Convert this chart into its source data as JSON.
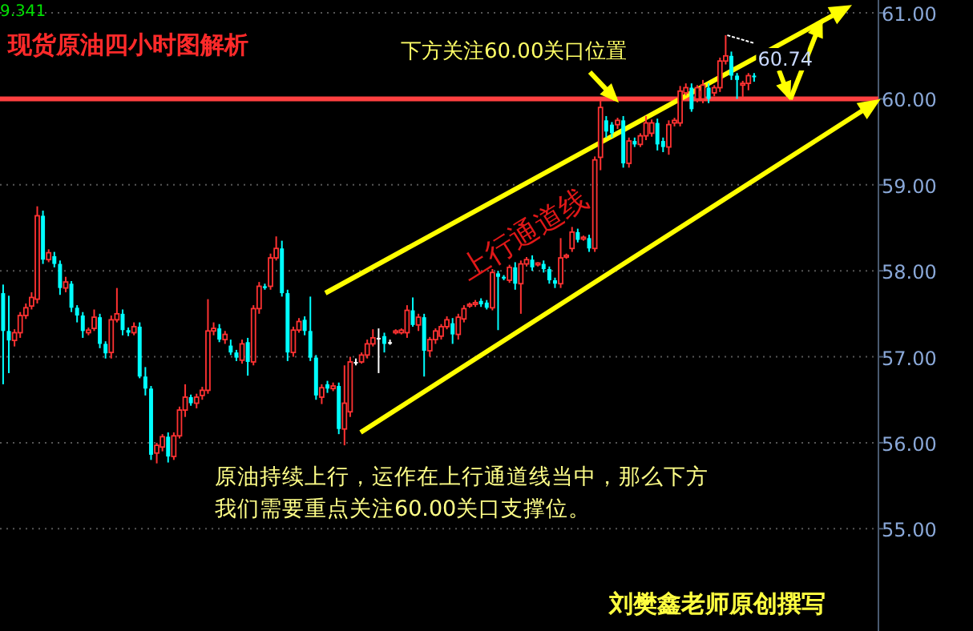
{
  "chart_data": {
    "type": "candlestick",
    "title": "现货原油四小时图解析",
    "categories": [
      null,
      null,
      null,
      null,
      null,
      null,
      null,
      null,
      null,
      null,
      null,
      null,
      null,
      null,
      null,
      null,
      null,
      null,
      null,
      null,
      null,
      null,
      null,
      null,
      null,
      null,
      null,
      null,
      null,
      null,
      null,
      null,
      null,
      null,
      null,
      null,
      null,
      null,
      null,
      null,
      null,
      null,
      null,
      null,
      null,
      null,
      null,
      null,
      null,
      null,
      null,
      null,
      null,
      null,
      null,
      null,
      null,
      null,
      null,
      null,
      null,
      null,
      null,
      null,
      null,
      null,
      null,
      null,
      null,
      null,
      null,
      null,
      null,
      null,
      null,
      null,
      null,
      null,
      null,
      null,
      null,
      null,
      null,
      null,
      null,
      null,
      null,
      null,
      null,
      null,
      null,
      null,
      null,
      null,
      null,
      null,
      null,
      null,
      null,
      null,
      null,
      null,
      null,
      null,
      null,
      null,
      null,
      null,
      null,
      null,
      null,
      null,
      null,
      null,
      null,
      null,
      null,
      null,
      null,
      null,
      null,
      null,
      null,
      null,
      null,
      null,
      null,
      null,
      null,
      null,
      null,
      null,
      null,
      null,
      null,
      null,
      null,
      null,
      null,
      null,
      null,
      null,
      null,
      null,
      null,
      null,
      null,
      null,
      null,
      null,
      null,
      null,
      null,
      null
    ],
    "ohlc": [
      [
        57.74,
        57.84,
        56.68,
        57.3
      ],
      [
        57.3,
        57.71,
        56.81,
        57.19
      ],
      [
        57.19,
        57.32,
        57.12,
        57.28
      ],
      [
        57.28,
        57.52,
        57.22,
        57.48
      ],
      [
        57.48,
        57.62,
        57.44,
        57.57
      ],
      [
        57.59,
        57.75,
        57.55,
        57.69
      ],
      [
        57.67,
        58.75,
        57.62,
        58.64
      ],
      [
        58.64,
        58.7,
        58.08,
        58.13
      ],
      [
        58.13,
        58.25,
        58.1,
        58.21
      ],
      [
        58.17,
        58.22,
        58.04,
        58.08
      ],
      [
        58.08,
        58.12,
        57.72,
        57.8
      ],
      [
        57.8,
        57.93,
        57.75,
        57.87
      ],
      [
        57.85,
        57.88,
        57.52,
        57.57
      ],
      [
        57.57,
        57.6,
        57.4,
        57.48
      ],
      [
        57.48,
        57.52,
        57.22,
        57.3
      ],
      [
        57.28,
        57.34,
        57.25,
        57.31
      ],
      [
        57.33,
        57.55,
        57.3,
        57.46
      ],
      [
        57.46,
        57.5,
        57.1,
        57.15
      ],
      [
        57.15,
        57.18,
        56.98,
        57.04
      ],
      [
        57.05,
        57.48,
        56.98,
        57.43
      ],
      [
        57.43,
        57.8,
        57.4,
        57.5
      ],
      [
        57.5,
        57.55,
        57.25,
        57.31
      ],
      [
        57.31,
        57.34,
        57.24,
        57.28
      ],
      [
        57.28,
        57.4,
        57.25,
        57.35
      ],
      [
        57.35,
        57.4,
        56.75,
        56.77
      ],
      [
        56.77,
        56.88,
        56.55,
        56.63
      ],
      [
        56.63,
        56.66,
        55.8,
        55.86
      ],
      [
        55.88,
        56.0,
        55.76,
        55.97
      ],
      [
        55.95,
        56.1,
        55.9,
        56.07
      ],
      [
        56.07,
        56.12,
        55.77,
        55.84
      ],
      [
        55.84,
        56.12,
        55.8,
        56.08
      ],
      [
        56.08,
        56.42,
        56.05,
        56.38
      ],
      [
        56.38,
        56.68,
        56.3,
        56.53
      ],
      [
        56.53,
        56.56,
        56.43,
        56.46
      ],
      [
        56.46,
        56.57,
        56.4,
        56.53
      ],
      [
        56.55,
        56.65,
        56.5,
        56.61
      ],
      [
        56.61,
        57.67,
        56.57,
        57.3
      ],
      [
        57.3,
        57.4,
        57.25,
        57.33
      ],
      [
        57.33,
        57.38,
        57.17,
        57.2
      ],
      [
        57.2,
        57.3,
        57.15,
        57.26
      ],
      [
        57.13,
        57.2,
        57.02,
        57.05
      ],
      [
        57.05,
        57.08,
        56.95,
        56.99
      ],
      [
        56.96,
        57.2,
        56.92,
        57.15
      ],
      [
        57.17,
        57.22,
        56.78,
        56.94
      ],
      [
        56.94,
        57.6,
        56.9,
        57.56
      ],
      [
        57.56,
        57.87,
        57.5,
        57.82
      ],
      [
        57.82,
        57.85,
        57.78,
        57.8
      ],
      [
        57.82,
        58.2,
        57.78,
        58.15
      ],
      [
        58.15,
        58.4,
        58.12,
        58.26
      ],
      [
        58.26,
        58.35,
        57.7,
        57.74
      ],
      [
        57.74,
        57.78,
        56.95,
        57.05
      ],
      [
        57.05,
        57.35,
        57.0,
        57.31
      ],
      [
        57.31,
        57.45,
        57.28,
        57.41
      ],
      [
        57.43,
        57.47,
        57.25,
        57.3
      ],
      [
        57.3,
        57.7,
        56.95,
        56.99
      ],
      [
        56.99,
        57.02,
        56.5,
        56.55
      ],
      [
        56.53,
        56.68,
        56.45,
        56.64
      ],
      [
        56.68,
        56.72,
        56.58,
        56.63
      ],
      [
        56.63,
        56.7,
        56.6,
        56.66
      ],
      [
        56.66,
        56.7,
        56.1,
        56.16
      ],
      [
        56.16,
        56.9,
        55.97,
        56.46
      ],
      [
        56.36,
        57.0,
        56.3,
        56.94
      ],
      [
        56.94,
        56.98,
        56.9,
        56.94
      ],
      [
        56.94,
        57.05,
        56.92,
        57.02
      ],
      [
        57.02,
        57.2,
        56.98,
        57.15
      ],
      [
        57.15,
        57.32,
        57.12,
        57.22
      ],
      [
        57.22,
        57.33,
        56.81,
        57.22
      ],
      [
        57.24,
        57.28,
        57.05,
        57.15
      ],
      [
        57.17,
        57.2,
        57.14,
        57.17
      ],
      [
        57.28,
        57.32,
        57.26,
        57.3
      ],
      [
        57.28,
        57.33,
        57.26,
        57.31
      ],
      [
        57.28,
        57.6,
        57.22,
        57.54
      ],
      [
        57.54,
        57.69,
        57.35,
        57.37
      ],
      [
        57.37,
        57.5,
        57.3,
        57.46
      ],
      [
        57.46,
        57.5,
        56.77,
        57.07
      ],
      [
        57.07,
        57.23,
        57.0,
        57.2
      ],
      [
        57.2,
        57.33,
        57.15,
        57.3
      ],
      [
        57.24,
        57.38,
        57.2,
        57.35
      ],
      [
        57.35,
        57.47,
        57.32,
        57.43
      ],
      [
        57.39,
        57.45,
        57.15,
        57.26
      ],
      [
        57.26,
        57.5,
        57.2,
        57.46
      ],
      [
        57.44,
        57.6,
        57.4,
        57.56
      ],
      [
        57.59,
        57.63,
        57.57,
        57.61
      ],
      [
        57.61,
        57.66,
        57.58,
        57.63
      ],
      [
        57.65,
        57.68,
        57.58,
        57.61
      ],
      [
        57.63,
        57.66,
        57.55,
        57.57
      ],
      [
        57.57,
        58.02,
        57.54,
        57.98
      ],
      [
        57.97,
        58.0,
        57.31,
        57.93
      ],
      [
        57.93,
        57.95,
        57.89,
        57.91
      ],
      [
        57.89,
        58.07,
        57.86,
        58.04
      ],
      [
        58.04,
        58.1,
        57.78,
        57.85
      ],
      [
        57.85,
        58.12,
        57.5,
        58.08
      ],
      [
        58.08,
        58.16,
        58.05,
        58.13
      ],
      [
        58.13,
        58.18,
        58.0,
        58.04
      ],
      [
        58.07,
        58.1,
        58.05,
        58.09
      ],
      [
        58.08,
        58.12,
        57.98,
        58.02
      ],
      [
        58.02,
        58.05,
        57.85,
        57.89
      ],
      [
        57.89,
        57.92,
        57.8,
        57.85
      ],
      [
        57.85,
        58.38,
        57.8,
        58.15
      ],
      [
        58.16,
        58.2,
        58.14,
        58.18
      ],
      [
        58.26,
        58.51,
        58.22,
        58.45
      ],
      [
        58.45,
        58.49,
        58.33,
        58.36
      ],
      [
        58.37,
        58.41,
        58.35,
        58.39
      ],
      [
        58.38,
        58.42,
        58.22,
        58.26
      ],
      [
        58.26,
        59.33,
        58.22,
        59.29
      ],
      [
        59.32,
        59.98,
        59.17,
        59.9
      ],
      [
        59.75,
        59.8,
        59.55,
        59.62
      ],
      [
        59.7,
        59.73,
        59.55,
        59.6
      ],
      [
        59.7,
        59.78,
        59.65,
        59.75
      ],
      [
        59.75,
        59.8,
        59.2,
        59.25
      ],
      [
        59.25,
        59.55,
        59.2,
        59.51
      ],
      [
        59.51,
        59.55,
        59.44,
        59.47
      ],
      [
        59.47,
        59.6,
        59.44,
        59.57
      ],
      [
        59.57,
        59.8,
        59.52,
        59.72
      ],
      [
        59.6,
        59.76,
        59.56,
        59.72
      ],
      [
        59.72,
        59.77,
        59.4,
        59.47
      ],
      [
        59.51,
        59.55,
        59.38,
        59.44
      ],
      [
        59.44,
        59.75,
        59.35,
        59.7
      ],
      [
        59.72,
        59.78,
        59.68,
        59.75
      ],
      [
        59.72,
        60.15,
        59.68,
        60.09
      ],
      [
        60.07,
        60.18,
        60.04,
        60.13
      ],
      [
        60.13,
        60.18,
        59.85,
        59.88
      ],
      [
        60.0,
        60.16,
        59.96,
        60.13
      ],
      [
        60.0,
        60.22,
        59.95,
        60.16
      ],
      [
        60.13,
        60.18,
        59.95,
        60.0
      ],
      [
        60.07,
        60.16,
        60.03,
        60.13
      ],
      [
        60.13,
        60.48,
        60.08,
        60.44
      ],
      [
        60.44,
        60.74,
        60.4,
        60.5
      ],
      [
        60.5,
        60.55,
        60.22,
        60.27
      ],
      [
        60.27,
        60.3,
        60.0,
        60.22
      ],
      [
        60.16,
        60.21,
        60.02,
        60.18
      ],
      [
        60.18,
        60.3,
        60.1,
        60.27
      ],
      [
        60.27,
        60.3,
        60.2,
        60.26
      ],
      null,
      null,
      null,
      null,
      null,
      null,
      null,
      null,
      null,
      null,
      null,
      null,
      null,
      null,
      null,
      null,
      null,
      null,
      null,
      null,
      null
    ],
    "ylim": [
      53.81,
      61.15
    ],
    "yticks": [
      {
        "value": 55,
        "label": "55.00"
      },
      {
        "value": 56,
        "label": "56.00"
      },
      {
        "value": 57,
        "label": "57.00"
      },
      {
        "value": 58,
        "label": "58.00"
      },
      {
        "value": 59,
        "label": "59.00"
      },
      {
        "value": 60,
        "label": "60.00"
      },
      {
        "value": 61,
        "label": "61.00"
      }
    ],
    "tick_labels": "y",
    "grid": "y",
    "ref_lines": [
      {
        "axis": "y",
        "value": 60,
        "color": "#ff4040"
      }
    ],
    "annotations": [
      "9.341",
      "下方关注60.00关口位置",
      "上行通道线",
      "60.74",
      "原油持续上行，运作在上行通道线当中，那么下方",
      "我们需要重点关注60.00关口支撑位。",
      "刘樊鑫老师原创撰写"
    ]
  }
}
